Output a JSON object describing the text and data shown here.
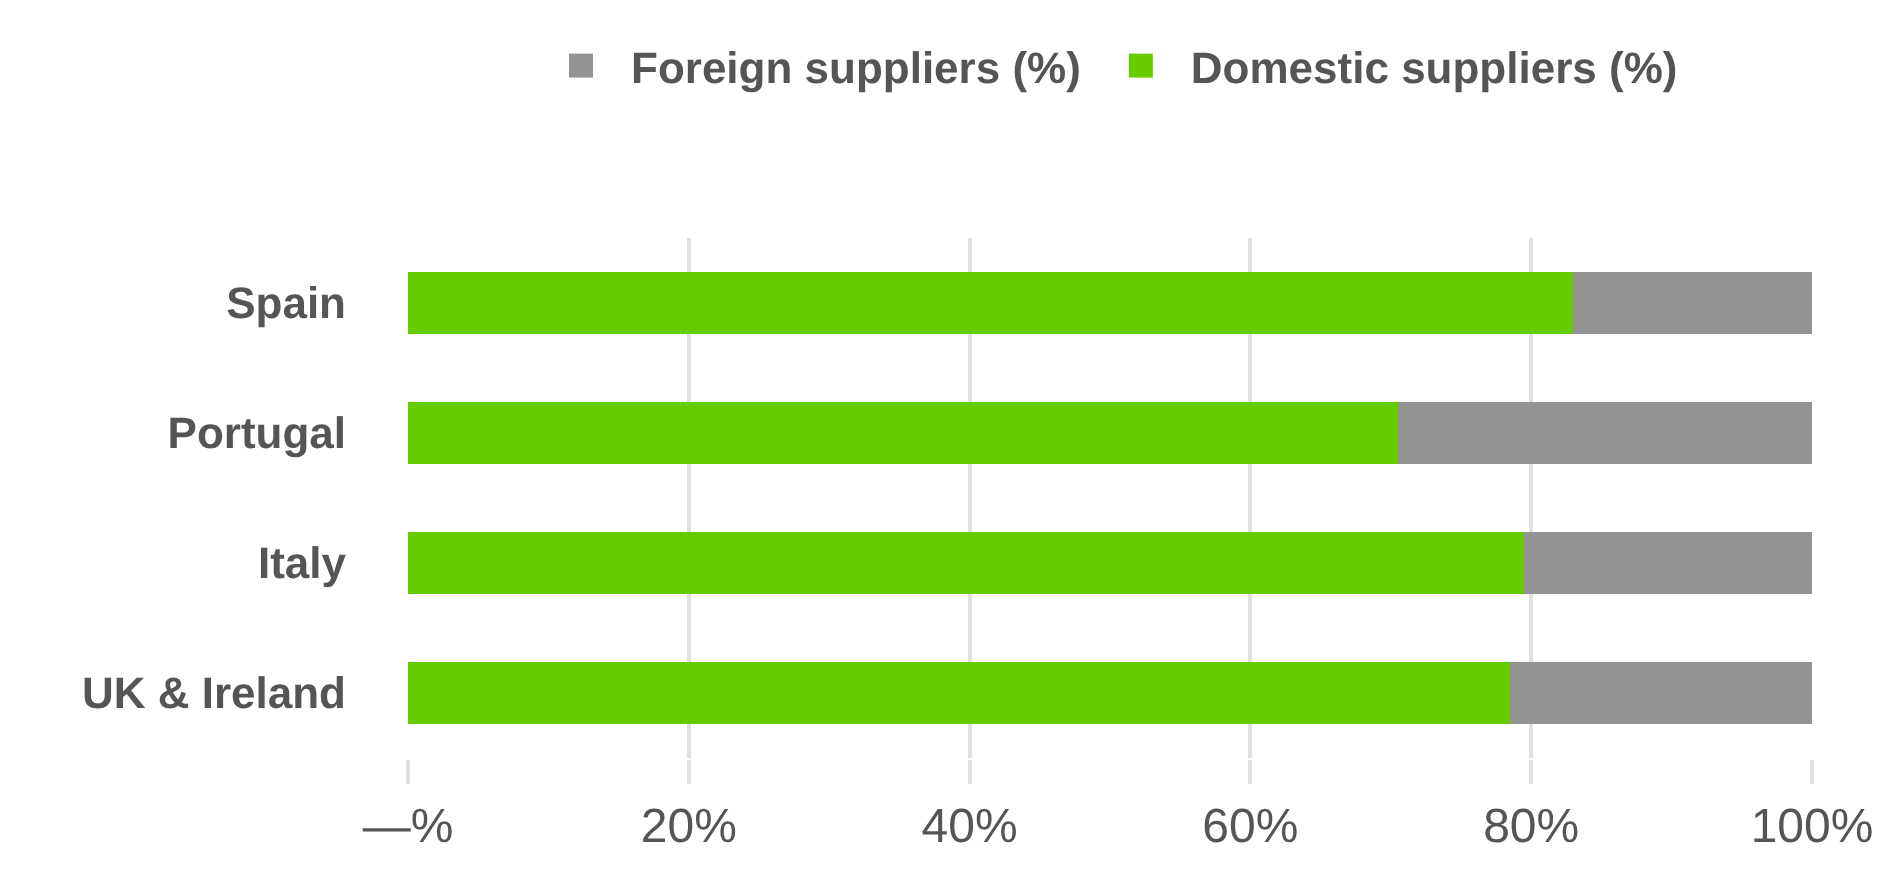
{
  "chart_data": {
    "type": "bar",
    "orientation": "horizontal",
    "stacked": true,
    "categories": [
      "Spain",
      "Portugal",
      "Italy",
      "UK & Ireland"
    ],
    "series": [
      {
        "name": "Domestic suppliers (%)",
        "color": "#66cc00",
        "values": [
          83,
          70.5,
          79.5,
          78.5
        ]
      },
      {
        "name": "Foreign suppliers (%)",
        "color": "#939393",
        "values": [
          17,
          29.5,
          20.5,
          21.5
        ]
      }
    ],
    "xlim": [
      0,
      100
    ],
    "xticks": [
      {
        "value": 0,
        "label": "—%"
      },
      {
        "value": 20,
        "label": "20%"
      },
      {
        "value": 40,
        "label": "40%"
      },
      {
        "value": 60,
        "label": "60%"
      },
      {
        "value": 80,
        "label": "80%"
      },
      {
        "value": 100,
        "label": "100%"
      }
    ],
    "grid": "x",
    "legend": "top"
  }
}
